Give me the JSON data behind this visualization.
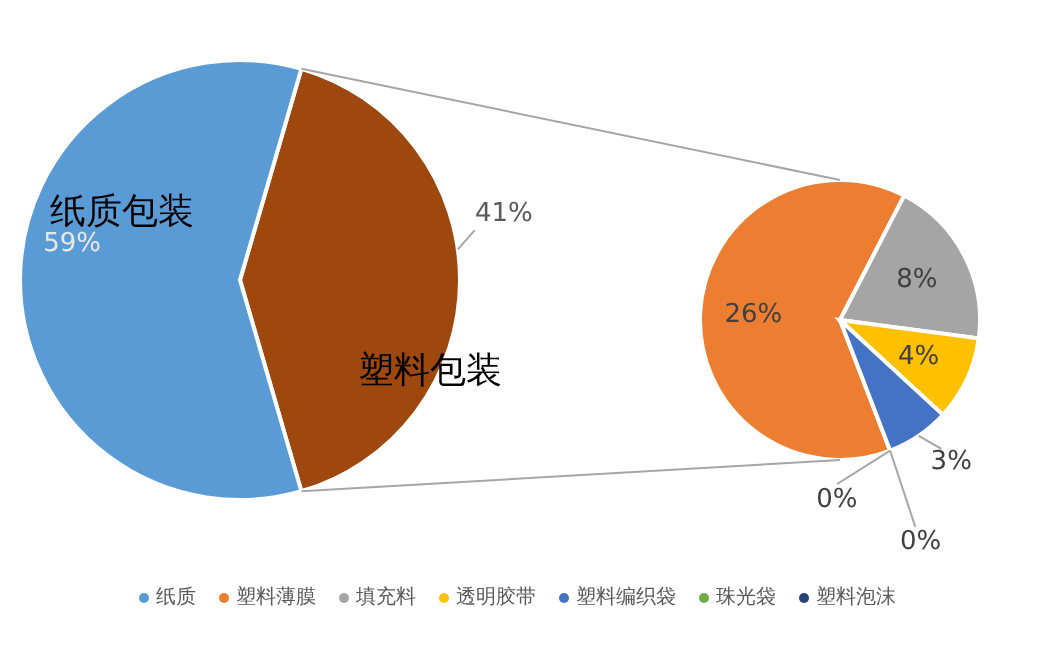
{
  "chart_data": [
    {
      "type": "pie",
      "categories": [
        "纸质包装",
        "塑料包装"
      ],
      "values": [
        59,
        41
      ],
      "colors": [
        "#5b9bd5",
        "#9e480e"
      ],
      "value_labels": [
        "59%",
        "41%"
      ]
    },
    {
      "type": "pie",
      "categories": [
        "纸质",
        "塑料薄膜",
        "填充料",
        "透明胶带",
        "塑料编织袋",
        "珠光袋",
        "塑料泡沫"
      ],
      "values": [
        null,
        26,
        8,
        4,
        3,
        0,
        0
      ],
      "colors": [
        "#5b9bd5",
        "#ed7d31",
        "#a5a5a5",
        "#ffc000",
        "#4472c4",
        "#70ad47",
        "#264478"
      ],
      "value_labels": [
        null,
        "26%",
        "8%",
        "4%",
        "3%",
        "0%",
        "0%"
      ],
      "legend": "bottom"
    }
  ]
}
